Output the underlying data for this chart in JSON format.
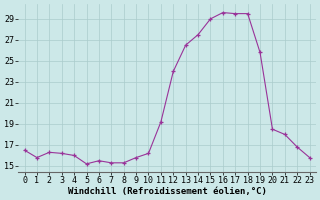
{
  "x": [
    0,
    1,
    2,
    3,
    4,
    5,
    6,
    7,
    8,
    9,
    10,
    11,
    12,
    13,
    14,
    15,
    16,
    17,
    18,
    19,
    20,
    21,
    22,
    23
  ],
  "y": [
    16.5,
    15.8,
    16.3,
    16.2,
    16.0,
    15.2,
    15.5,
    15.3,
    15.3,
    15.8,
    16.2,
    19.2,
    24.0,
    26.5,
    27.5,
    29.0,
    29.6,
    29.5,
    29.5,
    25.8,
    18.5,
    18.0,
    16.8,
    15.8
  ],
  "line_color": "#993399",
  "marker_color": "#993399",
  "bg_color": "#cce8e8",
  "grid_color": "#aacccc",
  "xlabel": "Windchill (Refroidissement éolien,°C)",
  "ylabel_ticks": [
    15,
    17,
    19,
    21,
    23,
    25,
    27,
    29
  ],
  "xlim": [
    -0.5,
    23.5
  ],
  "ylim": [
    14.4,
    30.4
  ],
  "xlabel_fontsize": 6.5,
  "tick_fontsize": 6
}
